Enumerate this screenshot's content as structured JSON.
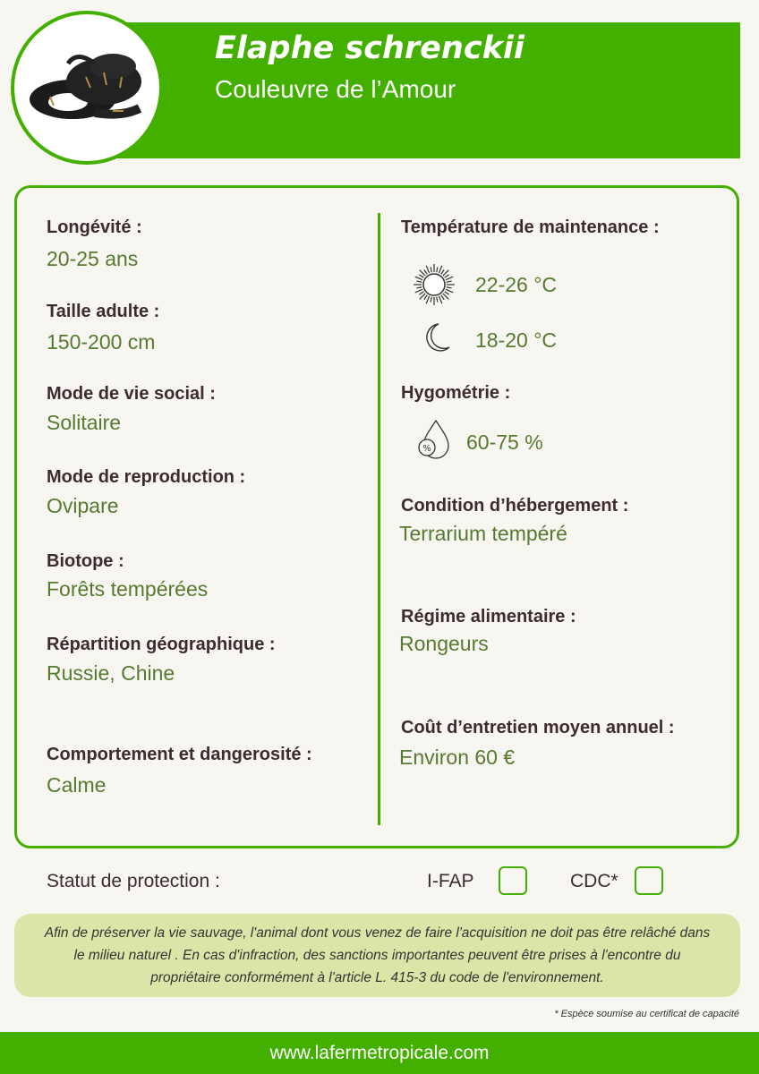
{
  "header": {
    "scientific_name": "Elaphe schrenckii",
    "common_name": "Couleuvre de l’Amour",
    "photo_icon": "snake-photo"
  },
  "left": [
    {
      "label": "Longévité :",
      "value": "20-25 ans"
    },
    {
      "label": "Taille adulte :",
      "value": "150-200 cm"
    },
    {
      "label": "Mode de vie social :",
      "value": "Solitaire"
    },
    {
      "label": "Mode de reproduction :",
      "value": "Ovipare"
    },
    {
      "label": "Biotope :",
      "value": "Forêts tempérées"
    },
    {
      "label": "Répartition géographique :",
      "value": "Russie, Chine"
    },
    {
      "label": "Comportement et dangerosité :",
      "value": "Calme"
    }
  ],
  "right": {
    "temperature": {
      "label": "Température de maintenance :",
      "day": "22-26 °C",
      "night": "18-20 °C"
    },
    "humidity": {
      "label": "Hygométrie :",
      "value": "60-75 %"
    },
    "housing": {
      "label": "Condition d’hébergement :",
      "value": "Terrarium tempéré"
    },
    "diet": {
      "label": "Régime alimentaire :",
      "value": "Rongeurs"
    },
    "cost": {
      "label": "Coût d’entretien moyen annuel :",
      "value": "Environ 60 €"
    }
  },
  "protection": {
    "label": "Statut de protection :",
    "ifap": "I-FAP",
    "cdc": "CDC*",
    "ifap_checked": false,
    "cdc_checked": false
  },
  "notice": "Afin de préserver la vie sauvage, l'animal dont vous venez de faire l'acquisition ne doit pas être relâché dans le milieu naturel . En cas d'infraction, des sanctions importantes peuvent être prises à l'encontre du propriétaire conformément à l'article L. 415-3 du code de l'environnement.",
  "footnote": "* Espèce soumise au certificat de capacité",
  "footer": "www.lafermetropicale.com",
  "colors": {
    "green": "#43b000",
    "label": "#3e2c2c",
    "value": "#557a30",
    "notice_bg": "#dae6a8"
  }
}
